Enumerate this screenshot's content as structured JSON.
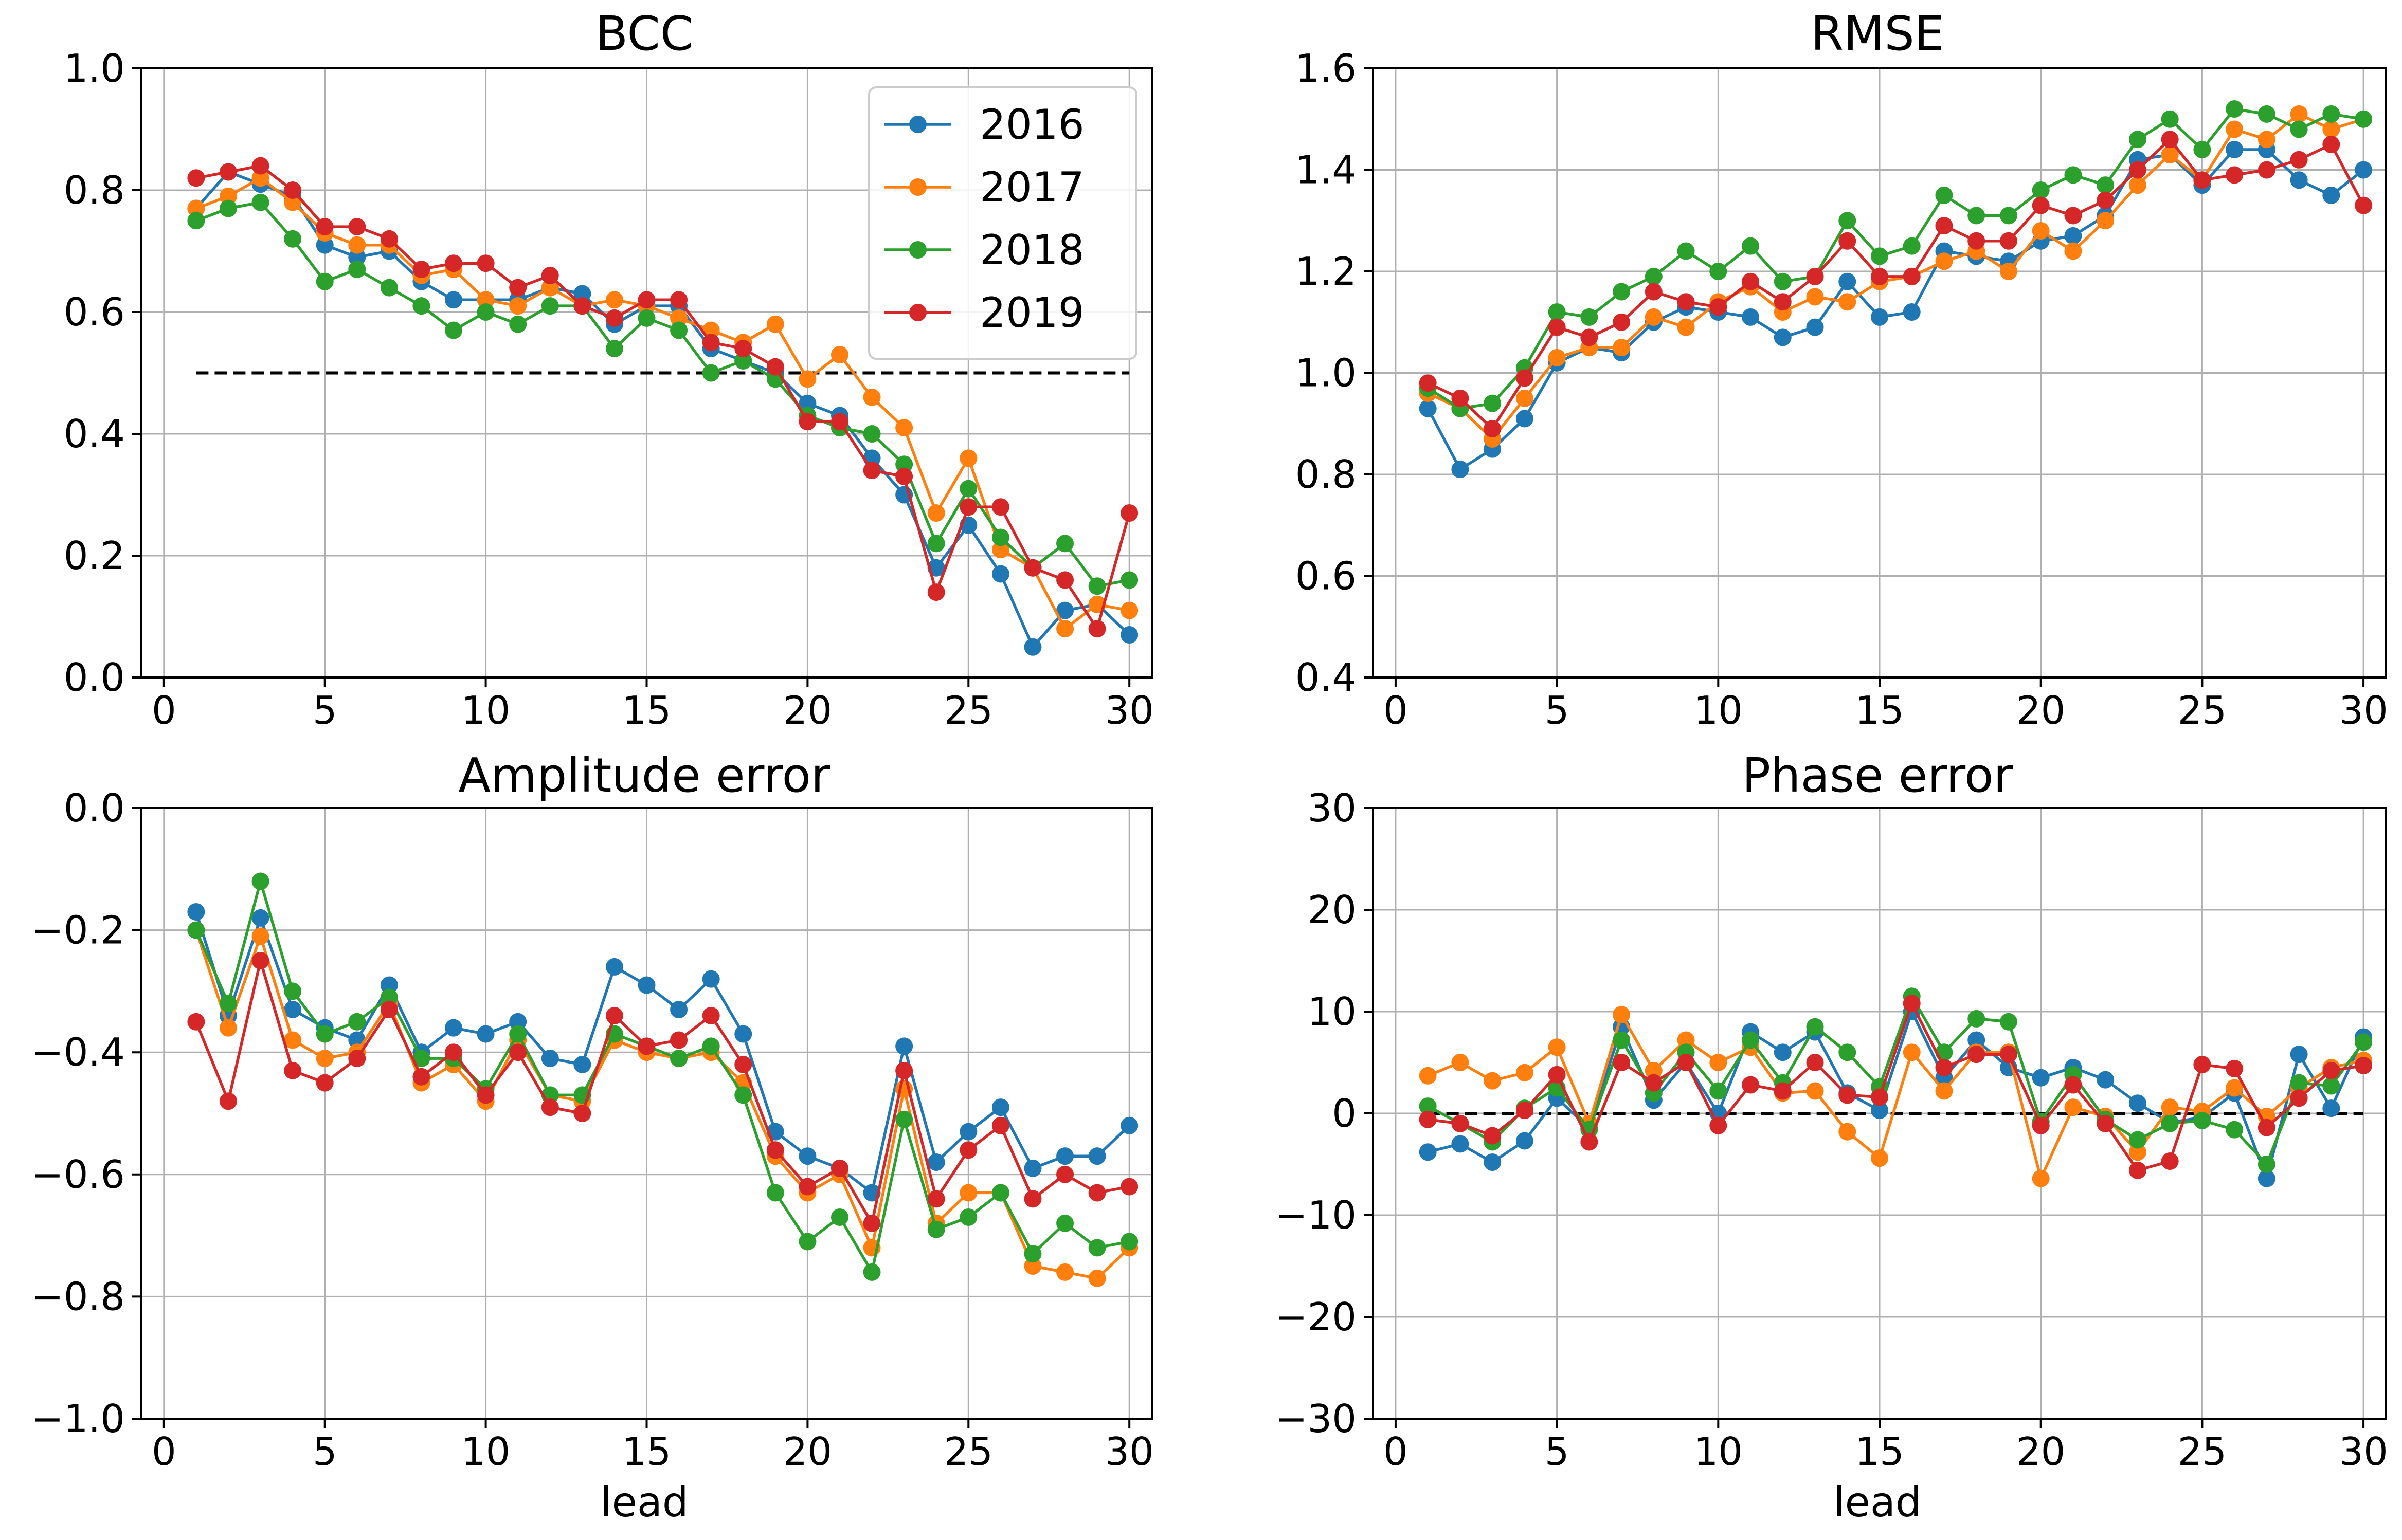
{
  "chart_data": [
    {
      "type": "line",
      "title": "BCC",
      "xlabel": "",
      "ylabel": "",
      "xlim": [
        -0.7,
        30.7
      ],
      "ylim": [
        0.0,
        1.0
      ],
      "xticks": [
        0,
        5,
        10,
        15,
        20,
        25,
        30
      ],
      "xtick_labels": [
        "0",
        "5",
        "10",
        "15",
        "20",
        "25",
        "30"
      ],
      "yticks": [
        0.0,
        0.2,
        0.4,
        0.6,
        0.8,
        1.0
      ],
      "ytick_labels": [
        "0.0",
        "0.2",
        "0.4",
        "0.6",
        "0.8",
        "1.0"
      ],
      "grid": true,
      "legend": "top-right",
      "x": [
        1,
        2,
        3,
        4,
        5,
        6,
        7,
        8,
        9,
        10,
        11,
        12,
        13,
        14,
        15,
        16,
        17,
        18,
        19,
        20,
        21,
        22,
        23,
        24,
        25,
        26,
        27,
        28,
        29,
        30
      ],
      "reference_line": {
        "y": 0.5,
        "x_range": [
          1,
          30
        ],
        "style": "dashed"
      },
      "series": [
        {
          "name": "2016",
          "color": "#1f77b4",
          "values": [
            0.77,
            0.83,
            0.81,
            0.79,
            0.71,
            0.69,
            0.7,
            0.65,
            0.62,
            0.62,
            0.62,
            0.64,
            0.63,
            0.58,
            0.61,
            0.61,
            0.54,
            0.52,
            0.5,
            0.45,
            0.43,
            0.36,
            0.3,
            0.18,
            0.25,
            0.17,
            0.05,
            0.11,
            0.12,
            0.07
          ]
        },
        {
          "name": "2017",
          "color": "#ff7f0e",
          "values": [
            0.77,
            0.79,
            0.82,
            0.78,
            0.73,
            0.71,
            0.71,
            0.66,
            0.67,
            0.62,
            0.61,
            0.64,
            0.61,
            0.62,
            0.61,
            0.59,
            0.57,
            0.55,
            0.58,
            0.49,
            0.53,
            0.46,
            0.41,
            0.27,
            0.36,
            0.21,
            0.18,
            0.08,
            0.12,
            0.11
          ]
        },
        {
          "name": "2018",
          "color": "#2ca02c",
          "values": [
            0.75,
            0.77,
            0.78,
            0.72,
            0.65,
            0.67,
            0.64,
            0.61,
            0.57,
            0.6,
            0.58,
            0.61,
            0.61,
            0.54,
            0.59,
            0.57,
            0.5,
            0.52,
            0.49,
            0.43,
            0.41,
            0.4,
            0.35,
            0.22,
            0.31,
            0.23,
            0.18,
            0.22,
            0.15,
            0.16
          ]
        },
        {
          "name": "2019",
          "color": "#d62728",
          "values": [
            0.82,
            0.83,
            0.84,
            0.8,
            0.74,
            0.74,
            0.72,
            0.67,
            0.68,
            0.68,
            0.64,
            0.66,
            0.61,
            0.59,
            0.62,
            0.62,
            0.55,
            0.54,
            0.51,
            0.42,
            0.42,
            0.34,
            0.33,
            0.14,
            0.28,
            0.28,
            0.18,
            0.16,
            0.08,
            0.27
          ]
        }
      ]
    },
    {
      "type": "line",
      "title": "RMSE",
      "xlabel": "",
      "ylabel": "",
      "xlim": [
        -0.7,
        30.7
      ],
      "ylim": [
        0.4,
        1.6
      ],
      "xticks": [
        0,
        5,
        10,
        15,
        20,
        25,
        30
      ],
      "xtick_labels": [
        "0",
        "5",
        "10",
        "15",
        "20",
        "25",
        "30"
      ],
      "yticks": [
        0.4,
        0.6,
        0.8,
        1.0,
        1.2,
        1.4,
        1.6
      ],
      "ytick_labels": [
        "0.4",
        "0.6",
        "0.8",
        "1.0",
        "1.2",
        "1.4",
        "1.6"
      ],
      "grid": true,
      "x": [
        1,
        2,
        3,
        4,
        5,
        6,
        7,
        8,
        9,
        10,
        11,
        12,
        13,
        14,
        15,
        16,
        17,
        18,
        19,
        20,
        21,
        22,
        23,
        24,
        25,
        26,
        27,
        28,
        29,
        30
      ],
      "series": [
        {
          "name": "2016",
          "color": "#1f77b4",
          "values": [
            0.93,
            0.81,
            0.85,
            0.91,
            1.02,
            1.05,
            1.04,
            1.1,
            1.13,
            1.12,
            1.11,
            1.07,
            1.09,
            1.18,
            1.11,
            1.12,
            1.24,
            1.23,
            1.22,
            1.26,
            1.27,
            1.31,
            1.42,
            1.43,
            1.37,
            1.44,
            1.44,
            1.38,
            1.35,
            1.4
          ]
        },
        {
          "name": "2017",
          "color": "#ff7f0e",
          "values": [
            0.96,
            0.93,
            0.87,
            0.95,
            1.03,
            1.05,
            1.05,
            1.11,
            1.09,
            1.14,
            1.17,
            1.12,
            1.15,
            1.14,
            1.18,
            1.19,
            1.22,
            1.24,
            1.2,
            1.28,
            1.24,
            1.3,
            1.37,
            1.43,
            1.38,
            1.48,
            1.46,
            1.51,
            1.48,
            1.5
          ]
        },
        {
          "name": "2018",
          "color": "#2ca02c",
          "values": [
            0.97,
            0.93,
            0.94,
            1.01,
            1.12,
            1.11,
            1.16,
            1.19,
            1.24,
            1.2,
            1.25,
            1.18,
            1.19,
            1.3,
            1.23,
            1.25,
            1.35,
            1.31,
            1.31,
            1.36,
            1.39,
            1.37,
            1.46,
            1.5,
            1.44,
            1.52,
            1.51,
            1.48,
            1.51,
            1.5
          ]
        },
        {
          "name": "2019",
          "color": "#d62728",
          "values": [
            0.98,
            0.95,
            0.89,
            0.99,
            1.09,
            1.07,
            1.1,
            1.16,
            1.14,
            1.13,
            1.18,
            1.14,
            1.19,
            1.26,
            1.19,
            1.19,
            1.29,
            1.26,
            1.26,
            1.33,
            1.31,
            1.34,
            1.4,
            1.46,
            1.38,
            1.39,
            1.4,
            1.42,
            1.45,
            1.33
          ]
        }
      ]
    },
    {
      "type": "line",
      "title": "Amplitude error",
      "xlabel": "lead",
      "ylabel": "",
      "xlim": [
        -0.7,
        30.7
      ],
      "ylim": [
        -1.0,
        0.0
      ],
      "xticks": [
        0,
        5,
        10,
        15,
        20,
        25,
        30
      ],
      "xtick_labels": [
        "0",
        "5",
        "10",
        "15",
        "20",
        "25",
        "30"
      ],
      "yticks": [
        -1.0,
        -0.8,
        -0.6,
        -0.4,
        -0.2,
        0.0
      ],
      "ytick_labels": [
        "−1.0",
        "−0.8",
        "−0.6",
        "−0.4",
        "−0.2",
        "0.0"
      ],
      "grid": true,
      "x": [
        1,
        2,
        3,
        4,
        5,
        6,
        7,
        8,
        9,
        10,
        11,
        12,
        13,
        14,
        15,
        16,
        17,
        18,
        19,
        20,
        21,
        22,
        23,
        24,
        25,
        26,
        27,
        28,
        29,
        30
      ],
      "series": [
        {
          "name": "2016",
          "color": "#1f77b4",
          "values": [
            -0.17,
            -0.34,
            -0.18,
            -0.33,
            -0.36,
            -0.38,
            -0.29,
            -0.4,
            -0.36,
            -0.37,
            -0.35,
            -0.41,
            -0.42,
            -0.26,
            -0.29,
            -0.33,
            -0.28,
            -0.37,
            -0.53,
            -0.57,
            -0.59,
            -0.63,
            -0.39,
            -0.58,
            -0.53,
            -0.49,
            -0.59,
            -0.57,
            -0.57,
            -0.52
          ]
        },
        {
          "name": "2017",
          "color": "#ff7f0e",
          "values": [
            -0.2,
            -0.36,
            -0.21,
            -0.38,
            -0.41,
            -0.4,
            -0.32,
            -0.45,
            -0.42,
            -0.48,
            -0.38,
            -0.47,
            -0.48,
            -0.38,
            -0.4,
            -0.41,
            -0.4,
            -0.45,
            -0.57,
            -0.63,
            -0.6,
            -0.72,
            -0.46,
            -0.68,
            -0.63,
            -0.63,
            -0.75,
            -0.76,
            -0.77,
            -0.72
          ]
        },
        {
          "name": "2018",
          "color": "#2ca02c",
          "values": [
            -0.2,
            -0.32,
            -0.12,
            -0.3,
            -0.37,
            -0.35,
            -0.31,
            -0.41,
            -0.41,
            -0.46,
            -0.37,
            -0.47,
            -0.47,
            -0.37,
            -0.39,
            -0.41,
            -0.39,
            -0.47,
            -0.63,
            -0.71,
            -0.67,
            -0.76,
            -0.51,
            -0.69,
            -0.67,
            -0.63,
            -0.73,
            -0.68,
            -0.72,
            -0.71
          ]
        },
        {
          "name": "2019",
          "color": "#d62728",
          "values": [
            -0.35,
            -0.48,
            -0.25,
            -0.43,
            -0.45,
            -0.41,
            -0.33,
            -0.44,
            -0.4,
            -0.47,
            -0.4,
            -0.49,
            -0.5,
            -0.34,
            -0.39,
            -0.38,
            -0.34,
            -0.42,
            -0.56,
            -0.62,
            -0.59,
            -0.68,
            -0.43,
            -0.64,
            -0.56,
            -0.52,
            -0.64,
            -0.6,
            -0.63,
            -0.62
          ]
        }
      ]
    },
    {
      "type": "line",
      "title": "Phase error",
      "xlabel": "lead",
      "ylabel": "",
      "xlim": [
        -0.7,
        30.7
      ],
      "ylim": [
        -30,
        30
      ],
      "xticks": [
        0,
        5,
        10,
        15,
        20,
        25,
        30
      ],
      "xtick_labels": [
        "0",
        "5",
        "10",
        "15",
        "20",
        "25",
        "30"
      ],
      "yticks": [
        -30,
        -20,
        -10,
        0,
        10,
        20,
        30
      ],
      "ytick_labels": [
        "−30",
        "−20",
        "−10",
        "0",
        "10",
        "20",
        "30"
      ],
      "grid": true,
      "x": [
        1,
        2,
        3,
        4,
        5,
        6,
        7,
        8,
        9,
        10,
        11,
        12,
        13,
        14,
        15,
        16,
        17,
        18,
        19,
        20,
        21,
        22,
        23,
        24,
        25,
        26,
        27,
        28,
        29,
        30
      ],
      "reference_line": {
        "y": 0,
        "x_range": [
          1,
          30
        ],
        "style": "dashed"
      },
      "series": [
        {
          "name": "2016",
          "color": "#1f77b4",
          "values": [
            -3.8,
            -3.0,
            -4.8,
            -2.7,
            1.5,
            -1.5,
            8.5,
            1.3,
            5.0,
            0.0,
            8.0,
            6.0,
            8.0,
            2.0,
            0.3,
            10.0,
            3.5,
            7.2,
            4.5,
            3.5,
            4.5,
            3.3,
            1.0,
            -0.9,
            -0.4,
            2.0,
            -6.4,
            5.8,
            0.5,
            7.5
          ]
        },
        {
          "name": "2017",
          "color": "#ff7f0e",
          "values": [
            3.7,
            5.0,
            3.2,
            4.0,
            6.5,
            -1.0,
            9.7,
            4.2,
            7.2,
            5.0,
            6.5,
            2.0,
            2.2,
            -1.8,
            -4.4,
            6.0,
            2.2,
            6.0,
            6.0,
            -6.4,
            0.6,
            -0.3,
            -3.8,
            0.6,
            0.2,
            2.5,
            -0.3,
            2.5,
            4.5,
            5.2
          ]
        },
        {
          "name": "2018",
          "color": "#2ca02c",
          "values": [
            0.7,
            -1.0,
            -2.8,
            0.5,
            2.5,
            -1.6,
            7.2,
            2.0,
            6.0,
            2.2,
            7.2,
            3.0,
            8.5,
            6.0,
            2.6,
            11.5,
            6.0,
            9.3,
            9.0,
            -0.8,
            3.8,
            -0.6,
            -2.6,
            -1.0,
            -0.7,
            -1.6,
            -5.0,
            3.0,
            2.7,
            7.0
          ]
        },
        {
          "name": "2019",
          "color": "#d62728",
          "values": [
            -0.6,
            -1.0,
            -2.2,
            0.3,
            3.8,
            -2.8,
            5.0,
            3.0,
            5.0,
            -1.2,
            2.8,
            2.2,
            5.0,
            1.8,
            1.6,
            10.8,
            4.5,
            5.8,
            5.8,
            -1.2,
            2.8,
            -1.0,
            -5.6,
            -4.7,
            4.8,
            4.4,
            -1.4,
            1.5,
            4.2,
            4.7
          ]
        }
      ]
    }
  ]
}
